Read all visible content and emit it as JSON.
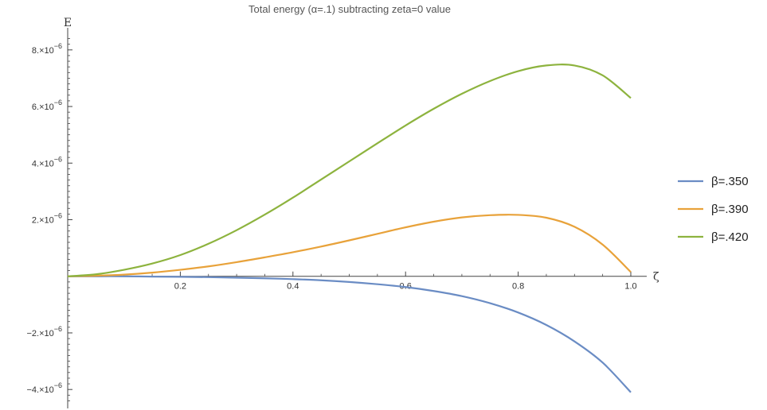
{
  "chart_data": {
    "type": "line",
    "title": "Total energy (α=.1) subtracting zeta=0 value",
    "xlabel": "ζ",
    "ylabel": "E",
    "xlim": [
      0,
      1.0
    ],
    "ylim": [
      -4.5e-06,
      8.5e-06
    ],
    "x_ticks": [
      {
        "value": 0.2,
        "label": "0.2"
      },
      {
        "value": 0.4,
        "label": "0.4"
      },
      {
        "value": 0.6,
        "label": "0.6"
      },
      {
        "value": 0.8,
        "label": "0.8"
      },
      {
        "value": 1.0,
        "label": "1.0"
      }
    ],
    "y_ticks": [
      {
        "value": 8e-06,
        "mantissa": "8.",
        "exponent": "−6"
      },
      {
        "value": 6e-06,
        "mantissa": "6.",
        "exponent": "−6"
      },
      {
        "value": 4e-06,
        "mantissa": "4.",
        "exponent": "−6"
      },
      {
        "value": 2e-06,
        "mantissa": "2.",
        "exponent": "−6"
      },
      {
        "value": -2e-06,
        "mantissa": "−2.",
        "exponent": "−6"
      },
      {
        "value": -4e-06,
        "mantissa": "−4.",
        "exponent": "−6"
      }
    ],
    "x": [
      0,
      0.05,
      0.1,
      0.15,
      0.2,
      0.25,
      0.3,
      0.35,
      0.4,
      0.45,
      0.5,
      0.55,
      0.6,
      0.65,
      0.7,
      0.75,
      0.8,
      0.85,
      0.9,
      0.95,
      1.0
    ],
    "series": [
      {
        "name": "β=.350",
        "color": "#6a8cc4",
        "values": [
          0,
          0,
          0,
          -1e-08,
          -2e-08,
          -3e-08,
          -5e-08,
          -7e-08,
          -1e-07,
          -1.4e-07,
          -2e-07,
          -2.8e-07,
          -3.8e-07,
          -5.2e-07,
          -7e-07,
          -9.5e-07,
          -1.28e-06,
          -1.72e-06,
          -2.3e-06,
          -3.05e-06,
          -4.1e-06
        ]
      },
      {
        "name": "β=.390",
        "color": "#e8a23a",
        "values": [
          0,
          2e-08,
          6e-08,
          1.3e-07,
          2.3e-07,
          3.5e-07,
          5e-07,
          6.7e-07,
          8.5e-07,
          1.05e-06,
          1.27e-06,
          1.5e-06,
          1.73e-06,
          1.93e-06,
          2.08e-06,
          2.16e-06,
          2.17e-06,
          2.07e-06,
          1.75e-06,
          1.12e-06,
          1.5e-07
        ]
      },
      {
        "name": "β=.420",
        "color": "#8db33e",
        "values": [
          0,
          7e-08,
          2.3e-07,
          4.5e-07,
          7.5e-07,
          1.15e-06,
          1.63e-06,
          2.18e-06,
          2.78e-06,
          3.42e-06,
          4.06e-06,
          4.7e-06,
          5.33e-06,
          5.92e-06,
          6.45e-06,
          6.9e-06,
          7.25e-06,
          7.45e-06,
          7.45e-06,
          7.1e-06,
          6.3e-06
        ]
      }
    ],
    "grid": false,
    "legend_position": "right"
  }
}
